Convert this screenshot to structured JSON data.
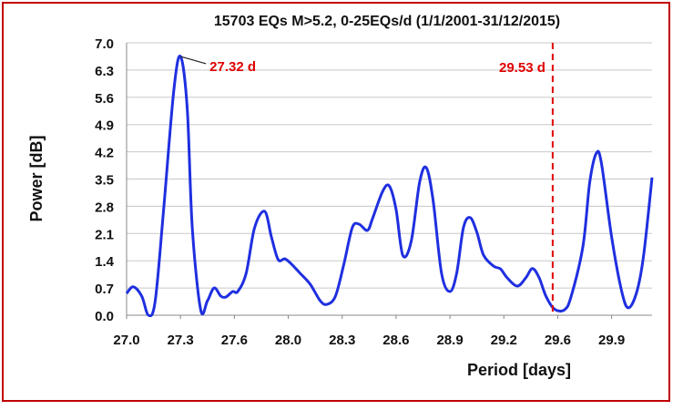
{
  "chart_data": {
    "type": "line",
    "title": "15703 EQs M>5.2, 0-25EQs/d (1/1/2001-31/12/2015)",
    "x_label": "Period  [days]",
    "y_label": "Power  [dB]",
    "x": [
      27.0,
      27.04,
      27.09,
      27.13,
      27.17,
      27.22,
      27.28,
      27.32,
      27.36,
      27.39,
      27.44,
      27.48,
      27.52,
      27.56,
      27.59,
      27.63,
      27.66,
      27.71,
      27.76,
      27.82,
      27.86,
      27.9,
      27.94,
      27.98,
      28.03,
      28.09,
      28.15,
      28.19,
      28.24,
      28.29,
      28.34,
      28.38,
      28.43,
      28.46,
      28.52,
      28.56,
      28.6,
      28.64,
      28.69,
      28.74,
      28.78,
      28.82,
      28.87,
      28.92,
      28.96,
      29.0,
      29.04,
      29.08,
      29.12,
      29.18,
      29.22,
      29.26,
      29.32,
      29.37,
      29.41,
      29.45,
      29.49,
      29.54,
      29.6,
      29.64,
      29.71,
      29.75,
      29.79,
      29.82,
      29.88,
      29.94,
      29.98,
      30.03,
      30.07,
      30.12
    ],
    "series": [
      {
        "name": "Power",
        "color": "#1f2fe0",
        "values": [
          0.56,
          0.73,
          0.49,
          0.0,
          0.37,
          2.72,
          5.76,
          6.65,
          5.32,
          2.25,
          0.14,
          0.37,
          0.7,
          0.49,
          0.47,
          0.61,
          0.61,
          1.08,
          2.25,
          2.67,
          2.01,
          1.43,
          1.45,
          1.31,
          1.08,
          0.8,
          0.37,
          0.28,
          0.49,
          1.31,
          2.25,
          2.34,
          2.18,
          2.48,
          3.18,
          3.32,
          2.72,
          1.54,
          1.9,
          3.42,
          3.79,
          2.95,
          1.08,
          0.61,
          1.08,
          2.25,
          2.51,
          2.13,
          1.54,
          1.26,
          1.19,
          0.96,
          0.75,
          0.96,
          1.2,
          0.96,
          0.49,
          0.16,
          0.14,
          0.49,
          1.78,
          3.42,
          4.17,
          3.89,
          2.01,
          0.61,
          0.19,
          0.61,
          1.54,
          3.54
        ]
      }
    ],
    "xlim": [
      27.0,
      30.12
    ],
    "xticks": [
      {
        "value": 27.0,
        "label": "27.0"
      },
      {
        "value": 27.32,
        "label": "27.3"
      },
      {
        "value": 27.64,
        "label": "27.6"
      },
      {
        "value": 27.96,
        "label": "28.0"
      },
      {
        "value": 28.28,
        "label": "28.3"
      },
      {
        "value": 28.6,
        "label": "28.6"
      },
      {
        "value": 28.92,
        "label": "28.9"
      },
      {
        "value": 29.24,
        "label": "29.2"
      },
      {
        "value": 29.56,
        "label": "29.6"
      },
      {
        "value": 29.88,
        "label": "29.9"
      }
    ],
    "ylim": [
      0,
      7
    ],
    "yticks": [
      {
        "value": 0,
        "label": "0.0"
      },
      0.7,
      1.4,
      2.1,
      2.8,
      3.5,
      4.2,
      4.9,
      5.6,
      6.3,
      {
        "value": 7,
        "label": "7.0"
      }
    ],
    "grid": true,
    "annotations": [
      {
        "text": "27.32 d",
        "x": 27.32,
        "y": 6.65,
        "color": "#e00000"
      },
      {
        "text": "29.53 d",
        "x": 29.53,
        "color": "#e00000"
      }
    ]
  }
}
